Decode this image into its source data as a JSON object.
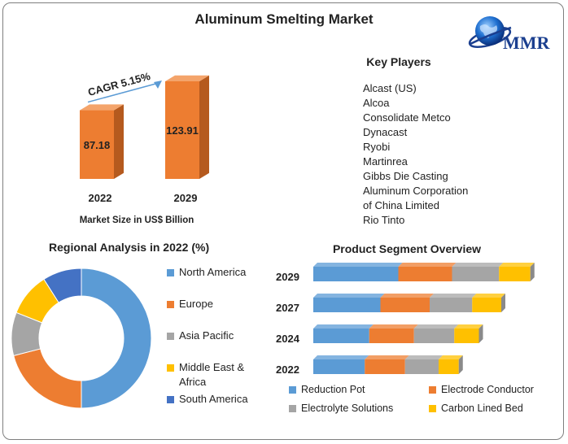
{
  "title": "Aluminum Smelting Market",
  "logo": {
    "text": "MMR",
    "icon": "globe-icon"
  },
  "key_players": {
    "title": "Key Players",
    "items": [
      "Alcast (US)",
      "Alcoa",
      "Consolidate Metco",
      "Dynacast",
      "Ryobi",
      "Martinrea",
      "Gibbs Die Casting",
      "Aluminum Corporation",
      "of China Limited",
      "Rio Tinto"
    ]
  },
  "chart_data": [
    {
      "type": "bar",
      "title": "",
      "categories": [
        "2022",
        "2029"
      ],
      "values": [
        87.18,
        123.91
      ],
      "value_labels": [
        "87.18",
        "123.91"
      ],
      "xlabel": "Market Size in US$ Billion",
      "annotation": "CAGR 5.15%",
      "colors": {
        "bar": "#ed7d31",
        "bar_dark": "#b55a1e",
        "arrow": "#5b9bd5"
      }
    },
    {
      "type": "pie",
      "title": "Regional Analysis in 2022 (%)",
      "labels": [
        "North America",
        "Europe",
        "Asia Pacific",
        "Middle East & Africa",
        "South America"
      ],
      "label_lines": [
        [
          "North America"
        ],
        [
          "Europe"
        ],
        [
          "Asia Pacific"
        ],
        [
          "Middle East &",
          "Africa"
        ],
        [
          "South America"
        ]
      ],
      "values": [
        50,
        21,
        10,
        10,
        9
      ],
      "colors": [
        "#5b9bd5",
        "#ed7d31",
        "#a5a5a5",
        "#ffc000",
        "#4472c4"
      ],
      "legend": "right"
    },
    {
      "type": "bar",
      "orientation": "horizontal",
      "stacked": true,
      "title": "Product Segment Overview",
      "categories": [
        "2029",
        "2027",
        "2024",
        "2022"
      ],
      "series": [
        {
          "name": "Reduction Pot",
          "values": [
            38,
            30,
            25,
            23
          ]
        },
        {
          "name": "Electrode Conductor",
          "values": [
            24,
            22,
            20,
            18
          ]
        },
        {
          "name": "Electrolyte Solutions",
          "values": [
            21,
            19,
            18,
            15
          ]
        },
        {
          "name": "Carbon Lined Bed",
          "values": [
            14,
            13,
            11,
            9
          ]
        }
      ],
      "colors": [
        "#5b9bd5",
        "#ed7d31",
        "#a5a5a5",
        "#ffc000"
      ],
      "legend": "bottom"
    }
  ]
}
